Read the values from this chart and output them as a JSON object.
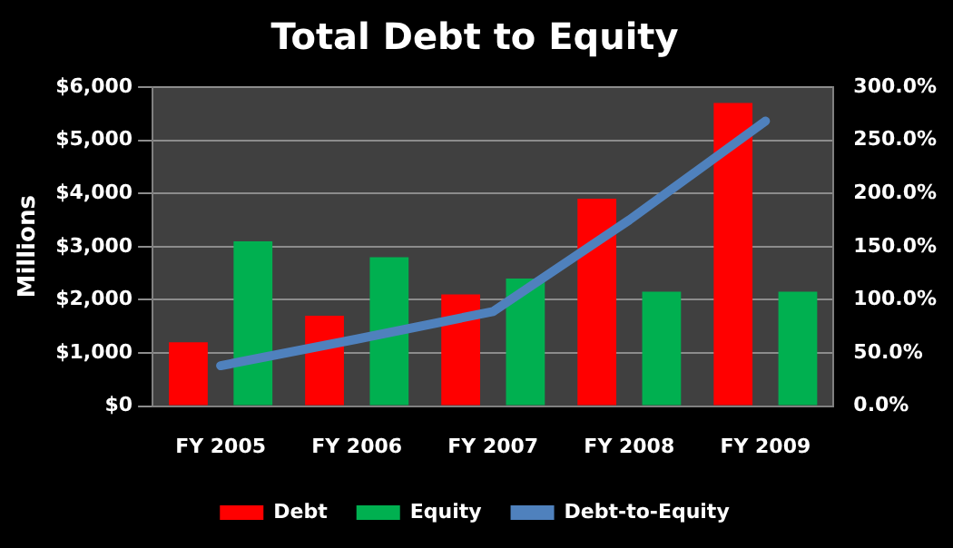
{
  "chart_data": {
    "type": "bar",
    "title": "Total Debt to Equity",
    "ylabel": "Millions",
    "categories": [
      "FY 2005",
      "FY 2006",
      "FY 2007",
      "FY 2008",
      "FY 2009"
    ],
    "series": [
      {
        "name": "Debt",
        "color": "#ff0000",
        "values": [
          1200,
          1700,
          2100,
          3900,
          5700
        ]
      },
      {
        "name": "Equity",
        "color": "#00b050",
        "values": [
          3100,
          2800,
          2400,
          2150,
          2150
        ]
      },
      {
        "name": "Debt-to-Equity",
        "type": "line",
        "axis": "y2",
        "color": "#4f81bd",
        "values": [
          38,
          63,
          89,
          175,
          268
        ]
      }
    ],
    "ylim": [
      0,
      6000
    ],
    "yticks": [
      {
        "value": 0,
        "label": "$0"
      },
      {
        "value": 1000,
        "label": "$1,000"
      },
      {
        "value": 2000,
        "label": "$2,000"
      },
      {
        "value": 3000,
        "label": "$3,000"
      },
      {
        "value": 4000,
        "label": "$4,000"
      },
      {
        "value": 5000,
        "label": "$5,000"
      },
      {
        "value": 6000,
        "label": "$6,000"
      }
    ],
    "y2lim": [
      0,
      300
    ],
    "y2ticks": [
      {
        "value": 0,
        "label": "0.0%"
      },
      {
        "value": 50,
        "label": "50.0%"
      },
      {
        "value": 100,
        "label": "100.0%"
      },
      {
        "value": 150,
        "label": "150.0%"
      },
      {
        "value": 200,
        "label": "200.0%"
      },
      {
        "value": 250,
        "label": "250.0%"
      },
      {
        "value": 300,
        "label": "300.0%"
      }
    ],
    "grid": "y",
    "legend": "bottom",
    "marker": "none"
  }
}
